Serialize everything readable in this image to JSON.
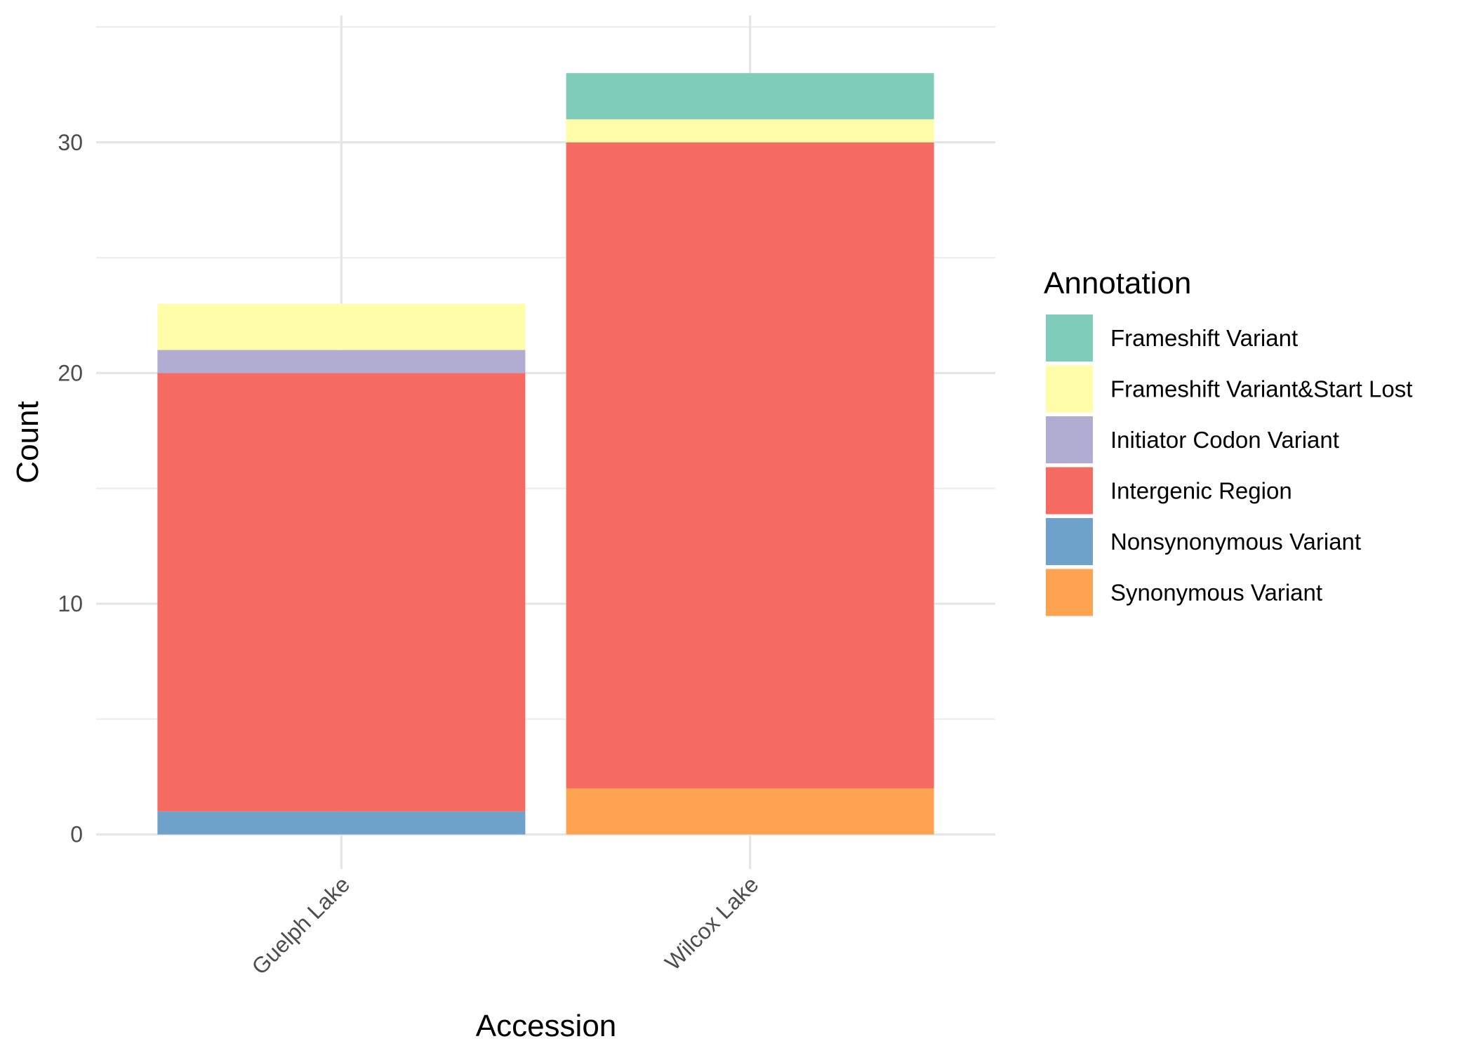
{
  "chart_data": {
    "type": "bar",
    "stacked": true,
    "categories": [
      "Guelph Lake",
      "Wilcox Lake"
    ],
    "series": [
      {
        "name": "Synonymous Variant",
        "color": "#FDA351",
        "values": [
          0,
          2
        ]
      },
      {
        "name": "Nonsynonymous Variant",
        "color": "#6FA2CB",
        "values": [
          1,
          0
        ]
      },
      {
        "name": "Intergenic Region",
        "color": "#F56A61",
        "values": [
          19,
          28
        ]
      },
      {
        "name": "Initiator Codon Variant",
        "color": "#B1ACD2",
        "values": [
          1,
          0
        ]
      },
      {
        "name": "Frameshift Variant&Start Lost",
        "color": "#FFFDA7",
        "values": [
          2,
          1
        ]
      },
      {
        "name": "Frameshift Variant",
        "color": "#7FCCBB",
        "values": [
          0,
          2
        ]
      }
    ],
    "xlabel": "Accession",
    "ylabel": "Count",
    "ylim": [
      -1.5,
      35.5
    ],
    "yticks": [
      0,
      10,
      20,
      30
    ],
    "grid": true,
    "legend": {
      "title": "Annotation",
      "position": "right",
      "entries": [
        "Frameshift Variant",
        "Frameshift Variant&Start Lost",
        "Initiator Codon Variant",
        "Intergenic Region",
        "Nonsynonymous Variant",
        "Synonymous Variant"
      ]
    }
  }
}
